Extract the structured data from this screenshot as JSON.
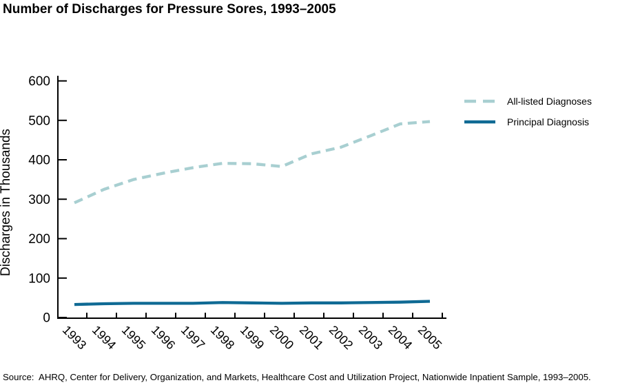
{
  "title": "Number of Discharges for Pressure Sores, 1993–2005",
  "source": "Source:  AHRQ, Center for Delivery, Organization, and Markets, Healthcare Cost and Utilization Project, Nationwide Inpatient Sample, 1993–2005.",
  "colors": {
    "all_listed": "#a8cfd1",
    "principal": "#0f6a94",
    "axis": "#000000",
    "text": "#000000",
    "background": "#ffffff"
  },
  "chart_data": {
    "type": "line",
    "title": "Number of Discharges for Pressure Sores, 1993–2005",
    "xlabel": "",
    "ylabel": "Discharges in Thousands",
    "categories": [
      "1993",
      "1994",
      "1995",
      "1996",
      "1997",
      "1998",
      "1999",
      "2000",
      "2001",
      "2002",
      "2003",
      "2004",
      "2005"
    ],
    "series": [
      {
        "name": "All-listed Diagnoses",
        "style": "dashed",
        "color": "#a8cfd1",
        "values": [
          291,
          325,
          350,
          366,
          380,
          391,
          390,
          383,
          415,
          432,
          461,
          491,
          497
        ]
      },
      {
        "name": "Principal Diagnosis",
        "style": "solid",
        "color": "#0f6a94",
        "values": [
          33,
          35,
          36,
          36,
          36,
          38,
          37,
          36,
          37,
          37,
          38,
          39,
          41
        ]
      }
    ],
    "ylim": [
      0,
      600
    ],
    "yticks": [
      0,
      100,
      200,
      300,
      400,
      500,
      600
    ],
    "grid": false,
    "legend_position": "right",
    "x_tick_label_rotation_deg": 45
  }
}
